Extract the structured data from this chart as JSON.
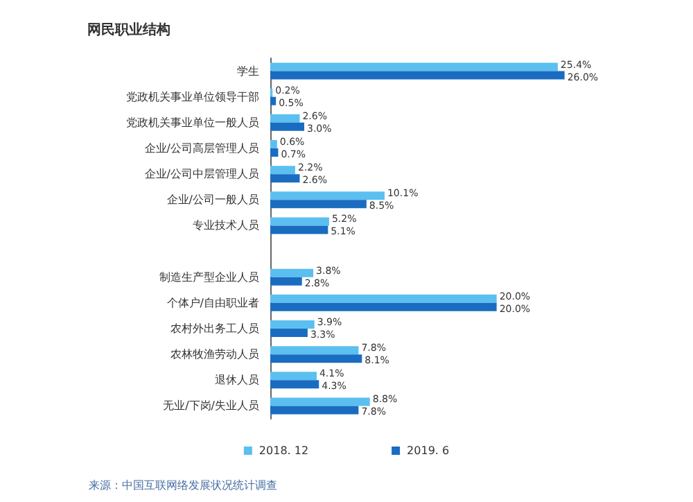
{
  "chart_data": {
    "type": "bar",
    "orientation": "horizontal",
    "title": "网民职业结构",
    "categories": [
      "学生",
      "党政机关事业单位领导干部",
      "党政机关事业单位一般人员",
      "企业/公司高层管理人员",
      "企业/公司中层管理人员",
      "企业/公司一般人员",
      "专业技术人员",
      null,
      "制造生产型企业人员",
      "个体户/自由职业者",
      "农村外出务工人员",
      "农林牧渔劳动人员",
      "退休人员",
      "无业/下岗/失业人员"
    ],
    "series": [
      {
        "name": "2018. 12",
        "color": "#5bbff0",
        "values": [
          25.4,
          0.2,
          2.6,
          0.6,
          2.2,
          10.1,
          5.2,
          null,
          3.8,
          20.0,
          3.9,
          7.8,
          4.1,
          8.8
        ],
        "value_labels": [
          "25.4%",
          "0.2%",
          "2.6%",
          "0.6%",
          "2.2%",
          "10.1%",
          "5.2%",
          null,
          "3.8%",
          "20.0%",
          "3.9%",
          "7.8%",
          "4.1%",
          "8.8%"
        ]
      },
      {
        "name": "2019. 6",
        "color": "#1a6cc0",
        "values": [
          26.0,
          0.5,
          3.0,
          0.7,
          2.6,
          8.5,
          5.1,
          null,
          2.8,
          20.0,
          3.3,
          8.1,
          4.3,
          7.8
        ],
        "value_labels": [
          "26.0%",
          "0.5%",
          "3.0%",
          "0.7%",
          "2.6%",
          "8.5%",
          "5.1%",
          null,
          "2.8%",
          "20.0%",
          "3.3%",
          "8.1%",
          "4.3%",
          "7.8%"
        ]
      }
    ],
    "legend": "bottom",
    "annotations": [
      "来源：中国互联网络发展状况统计调查"
    ]
  }
}
